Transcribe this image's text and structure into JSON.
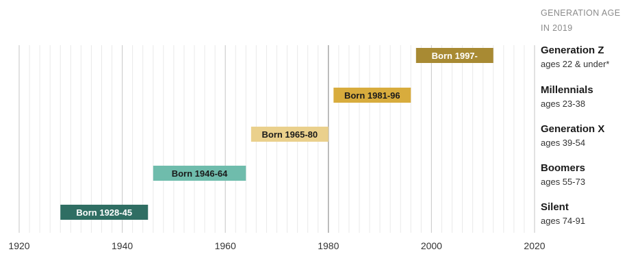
{
  "header": {
    "line1": "GENERATION AGE",
    "line2": "IN 2019"
  },
  "chart_data": {
    "type": "bar",
    "orientation": "horizontal-range",
    "xlim": [
      1920,
      2020
    ],
    "xticks": [
      "1920",
      "1940",
      "1960",
      "1980",
      "2000",
      "2020"
    ],
    "grid": true,
    "series": [
      {
        "name": "Generation Z",
        "ages": "ages 22 & under*",
        "label": "Born 1997-",
        "start": 1997,
        "end": 2012,
        "color": "#a88a33",
        "text_color": "#ffffff"
      },
      {
        "name": "Millennials",
        "ages": "ages 23-38",
        "label": "Born 1981-96",
        "start": 1981,
        "end": 1996,
        "color": "#d8ac3d",
        "text_color": "#1a1a1a"
      },
      {
        "name": "Generation X",
        "ages": "ages 39-54",
        "label": "Born 1965-80",
        "start": 1965,
        "end": 1980,
        "color": "#ead08c",
        "text_color": "#1a1a1a"
      },
      {
        "name": "Boomers",
        "ages": "ages 55-73",
        "label": "Born 1946-64",
        "start": 1946,
        "end": 1964,
        "color": "#6fbcac",
        "text_color": "#1a1a1a"
      },
      {
        "name": "Silent",
        "ages": "ages 74-91",
        "label": "Born 1928-45",
        "start": 1928,
        "end": 1945,
        "color": "#2f6e63",
        "text_color": "#ffffff"
      }
    ]
  }
}
